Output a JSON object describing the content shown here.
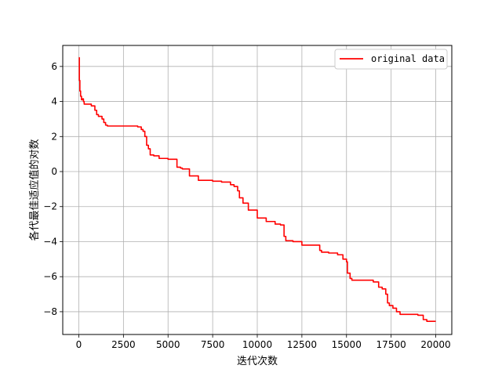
{
  "chart_data": {
    "type": "line",
    "title": "",
    "xlabel": "迭代次数",
    "ylabel": "各代最佳适应值的对数",
    "xlim": [
      -900,
      20900
    ],
    "ylim": [
      -9.3,
      7.2
    ],
    "xticks": [
      0,
      2500,
      5000,
      7500,
      10000,
      12500,
      15000,
      17500,
      20000
    ],
    "yticks": [
      6,
      4,
      2,
      0,
      -2,
      -4,
      -6,
      -8
    ],
    "grid": true,
    "legend": {
      "position": "top-right"
    },
    "colors": {
      "series": "#ff0000",
      "grid": "#b0b0b0"
    },
    "series": [
      {
        "name": "original data",
        "x": [
          0,
          30,
          60,
          100,
          150,
          200,
          260,
          300,
          400,
          500,
          700,
          900,
          1000,
          1100,
          1200,
          1300,
          1400,
          1500,
          1600,
          2500,
          3300,
          3500,
          3600,
          3700,
          3800,
          3900,
          4000,
          4200,
          4500,
          5000,
          5500,
          5700,
          5800,
          6200,
          6700,
          7500,
          8000,
          8500,
          8700,
          8900,
          9000,
          9200,
          9500,
          10000,
          10500,
          11000,
          11300,
          11500,
          11600,
          12000,
          12500,
          13000,
          13500,
          13600,
          14000,
          14500,
          14800,
          15000,
          15050,
          15200,
          15300,
          16000,
          16500,
          16800,
          17000,
          17200,
          17300,
          17400,
          17600,
          17800,
          18000,
          18500,
          19000,
          19300,
          19500,
          20000
        ],
        "y": [
          6.5,
          5.2,
          4.6,
          4.3,
          4.1,
          4.15,
          4.0,
          3.85,
          3.85,
          3.85,
          3.75,
          3.5,
          3.25,
          3.15,
          3.15,
          3.0,
          2.8,
          2.65,
          2.6,
          2.6,
          2.55,
          2.4,
          2.3,
          2.0,
          1.5,
          1.3,
          0.95,
          0.9,
          0.75,
          0.7,
          0.25,
          0.2,
          0.15,
          -0.25,
          -0.5,
          -0.55,
          -0.6,
          -0.75,
          -0.85,
          -1.1,
          -1.5,
          -1.8,
          -2.2,
          -2.65,
          -2.85,
          -3.0,
          -3.05,
          -3.7,
          -3.95,
          -4.0,
          -4.2,
          -4.2,
          -4.5,
          -4.6,
          -4.65,
          -4.75,
          -5.0,
          -5.15,
          -5.8,
          -6.1,
          -6.2,
          -6.2,
          -6.3,
          -6.6,
          -6.7,
          -7.0,
          -7.5,
          -7.65,
          -7.8,
          -8.0,
          -8.15,
          -8.15,
          -8.2,
          -8.45,
          -8.55,
          -8.55
        ]
      }
    ]
  }
}
